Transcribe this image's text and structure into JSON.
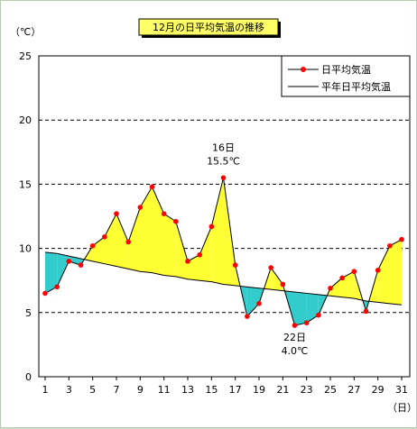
{
  "chart_data": {
    "type": "area",
    "title": "12月の日平均気温の推移",
    "y_unit": "（℃）",
    "x_unit": "（日）",
    "ylim": [
      0,
      25
    ],
    "yticks": [
      0,
      5,
      10,
      15,
      20,
      25
    ],
    "xlim": [
      1,
      31
    ],
    "xticks": [
      1,
      3,
      5,
      7,
      9,
      11,
      13,
      15,
      17,
      19,
      21,
      23,
      25,
      27,
      29,
      31
    ],
    "grid": "horizontal-dashed",
    "legend_position": "top-right",
    "series": [
      {
        "name": "日平均気温",
        "x": [
          1,
          2,
          3,
          4,
          5,
          6,
          7,
          8,
          9,
          10,
          11,
          12,
          13,
          14,
          15,
          16,
          17,
          18,
          19,
          20,
          21,
          22,
          23,
          24,
          25,
          26,
          27,
          28,
          29,
          30,
          31
        ],
        "values": [
          6.5,
          7.0,
          9.0,
          8.7,
          10.2,
          10.9,
          12.7,
          10.5,
          13.2,
          14.8,
          12.7,
          12.1,
          9.0,
          9.5,
          11.7,
          15.5,
          8.7,
          4.7,
          5.7,
          8.5,
          7.2,
          4.0,
          4.2,
          4.8,
          6.9,
          7.7,
          8.2,
          5.1,
          8.3,
          10.2,
          10.7
        ],
        "color": "#ff0000"
      },
      {
        "name": "平年日平均気温",
        "x": [
          1,
          2,
          3,
          4,
          5,
          6,
          7,
          8,
          9,
          10,
          11,
          12,
          13,
          14,
          15,
          16,
          17,
          18,
          19,
          20,
          21,
          22,
          23,
          24,
          25,
          26,
          27,
          28,
          29,
          30,
          31
        ],
        "values": [
          9.7,
          9.6,
          9.4,
          9.2,
          9.0,
          8.8,
          8.6,
          8.4,
          8.2,
          8.1,
          7.9,
          7.8,
          7.6,
          7.5,
          7.4,
          7.2,
          7.1,
          7.0,
          6.9,
          6.8,
          6.7,
          6.6,
          6.5,
          6.4,
          6.3,
          6.2,
          6.1,
          5.9,
          5.8,
          5.7,
          5.6
        ],
        "color": "#000000"
      }
    ],
    "annotations": [
      {
        "day": "16日",
        "value": "15.5℃",
        "x": 16,
        "y": 15.5,
        "placement": "above"
      },
      {
        "day": "22日",
        "value": "4.0℃",
        "x": 22,
        "y": 4.0,
        "placement": "below"
      }
    ],
    "fill_above_normal": "#ffff33",
    "fill_below_normal": "#33cccc"
  }
}
